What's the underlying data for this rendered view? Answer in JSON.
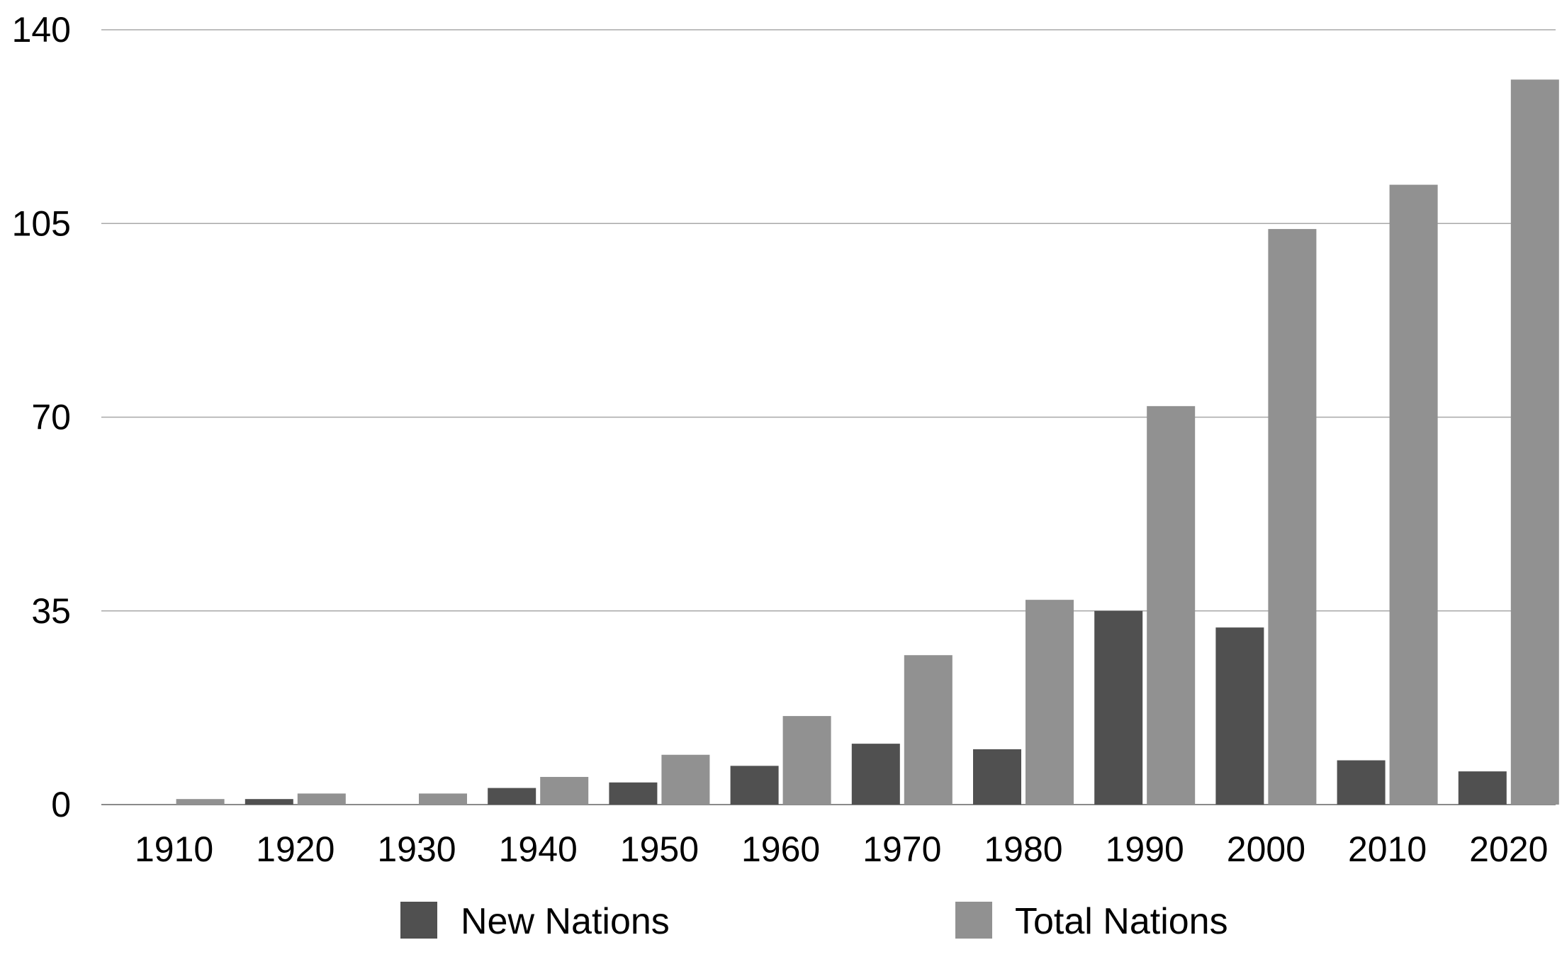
{
  "chart_data": {
    "type": "bar",
    "categories": [
      "1910",
      "1920",
      "1930",
      "1940",
      "1950",
      "1960",
      "1970",
      "1980",
      "1990",
      "2000",
      "2010",
      "2020"
    ],
    "series": [
      {
        "name": "New Nations",
        "color": "#505050",
        "values": [
          0,
          1,
          0,
          3,
          4,
          7,
          11,
          10,
          35,
          32,
          8,
          6
        ]
      },
      {
        "name": "Total Nations",
        "color": "#919191",
        "values": [
          1,
          2,
          2,
          5,
          9,
          16,
          27,
          37,
          72,
          104,
          112,
          131
        ]
      }
    ],
    "ylim": [
      0,
      140
    ],
    "yticks": [
      "0",
      "35",
      "70",
      "105",
      "140"
    ],
    "grid": true,
    "legend_position": "bottom"
  }
}
